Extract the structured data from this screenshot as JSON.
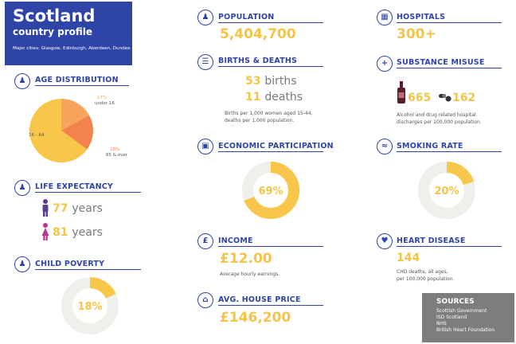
{
  "header": {
    "title": "Scotland",
    "subtitle": "country profile",
    "cities": "Major cities: Glasgow, Edinburgh, Aberdeen, Dundee"
  },
  "age": {
    "heading": "AGE DISTRIBUTION",
    "segments": [
      {
        "pct": "17%",
        "label": "under 16",
        "value": 17,
        "color": "#f7a35c"
      },
      {
        "pct": "18%",
        "label": "65 & over",
        "value": 18,
        "color": "#f4824d"
      },
      {
        "pct": "65%",
        "label": "16 - 64",
        "value": 65,
        "color": "#f8c749"
      }
    ]
  },
  "life": {
    "heading": "LIFE EXPECTANCY",
    "male": "77",
    "female": "81",
    "unit": "years"
  },
  "poverty": {
    "heading": "CHILD POVERTY",
    "pct": "18%",
    "value": 18
  },
  "population": {
    "heading": "POPULATION",
    "value": "5,404,700"
  },
  "births": {
    "heading": "BIRTHS & DEATHS",
    "births_num": "53",
    "births_word": "births",
    "deaths_num": "11",
    "deaths_word": "deaths",
    "note1": "Births per 1,000 women aged 15-44,",
    "note2": "deaths per 1,000 population."
  },
  "economic": {
    "heading": "ECONOMIC PARTICIPATION",
    "pct": "69%",
    "value": 69
  },
  "income": {
    "heading": "INCOME",
    "value": "£12.00",
    "note": "Average hourly earnings."
  },
  "house": {
    "heading": "AVG. HOUSE PRICE",
    "value": "£146,200"
  },
  "hospitals": {
    "heading": "HOSPITALS",
    "value": "300+"
  },
  "substance": {
    "heading": "SUBSTANCE MISUSE",
    "alcohol": "665",
    "drug": "162",
    "note1": "Alcohol and drug related hospital",
    "note2": "discharges per 100,000 population."
  },
  "smoking": {
    "heading": "SMOKING RATE",
    "pct": "20%",
    "value": 20
  },
  "heart": {
    "heading": "HEART DISEASE",
    "value": "144",
    "note1": "CHD deaths, all ages,",
    "note2": "per 100,000 population."
  },
  "sources": {
    "title": "SOURCES",
    "items": [
      "Scottish Government",
      "ISD Scotland",
      "NHS",
      "British Heart Foundation"
    ]
  },
  "colors": {
    "navy": "#2e44a6",
    "yellow": "#f5c445",
    "track": "#f0f0ea"
  }
}
